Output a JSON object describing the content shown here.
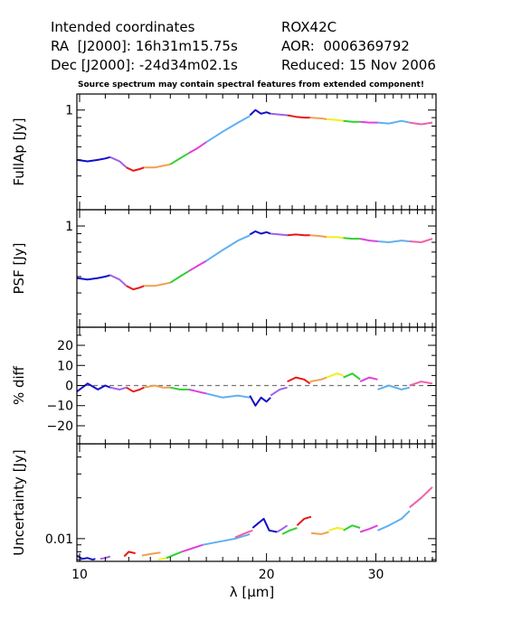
{
  "header": {
    "left_lines": [
      "Intended coordinates",
      "RA  [J2000]: 16h31m15.75s",
      "Dec [J2000]: -24d34m02.1s"
    ],
    "right_lines": [
      "ROX42C",
      "AOR:  0006369792",
      "Reduced: 15 Nov 2006"
    ],
    "note": "Source spectrum may contain spectral features from extended component!"
  },
  "chart_data": [
    {
      "type": "line",
      "ylabel": "FullAp [Jy]",
      "xscale": "log",
      "yscale": "log",
      "xlim": [
        9.9,
        37.5
      ],
      "ylim": [
        0.25,
        1.25
      ],
      "yticks": [
        1
      ],
      "ytick_labels": [
        "1"
      ],
      "segments": [
        {
          "color": "#1010c8",
          "x": [
            9.9,
            10.3,
            10.7,
            11.0,
            11.2
          ],
          "y": [
            0.5,
            0.49,
            0.5,
            0.51,
            0.52
          ]
        },
        {
          "color": "#a060e8",
          "x": [
            11.2,
            11.6,
            11.9
          ],
          "y": [
            0.52,
            0.49,
            0.45
          ]
        },
        {
          "color": "#e81818",
          "x": [
            11.9,
            12.2,
            12.5,
            12.7
          ],
          "y": [
            0.45,
            0.43,
            0.44,
            0.45
          ]
        },
        {
          "color": "#f0a050",
          "x": [
            12.7,
            13.2,
            13.6,
            14.0
          ],
          "y": [
            0.45,
            0.45,
            0.46,
            0.47
          ]
        },
        {
          "color": "#30d030",
          "x": [
            14.0,
            14.5,
            15.0
          ],
          "y": [
            0.47,
            0.51,
            0.55
          ]
        },
        {
          "color": "#e040e0",
          "x": [
            15.0,
            15.5,
            16.0
          ],
          "y": [
            0.55,
            0.59,
            0.64
          ]
        },
        {
          "color": "#60b0f0",
          "x": [
            16.0,
            17.0,
            18.0,
            18.8
          ],
          "y": [
            0.64,
            0.74,
            0.84,
            0.92
          ]
        },
        {
          "color": "#1010c8",
          "x": [
            18.8,
            19.2,
            19.6,
            20.0,
            20.3
          ],
          "y": [
            0.93,
            1.0,
            0.95,
            0.97,
            0.95
          ]
        },
        {
          "color": "#a060e8",
          "x": [
            20.3,
            21.0,
            21.6
          ],
          "y": [
            0.95,
            0.94,
            0.93
          ]
        },
        {
          "color": "#e81818",
          "x": [
            21.6,
            22.3,
            23.0,
            23.5
          ],
          "y": [
            0.93,
            0.91,
            0.9,
            0.9
          ]
        },
        {
          "color": "#f0a050",
          "x": [
            23.5,
            24.5,
            25.0
          ],
          "y": [
            0.9,
            0.89,
            0.88
          ]
        },
        {
          "color": "#f0f020",
          "x": [
            25.0,
            26.0,
            26.6
          ],
          "y": [
            0.88,
            0.87,
            0.86
          ]
        },
        {
          "color": "#30d030",
          "x": [
            26.6,
            27.5,
            28.3
          ],
          "y": [
            0.86,
            0.85,
            0.85
          ]
        },
        {
          "color": "#e040e0",
          "x": [
            28.3,
            29.3,
            30.2
          ],
          "y": [
            0.85,
            0.84,
            0.84
          ]
        },
        {
          "color": "#60b0f0",
          "x": [
            30.2,
            31.5,
            33.0,
            34.0
          ],
          "y": [
            0.84,
            0.83,
            0.86,
            0.84
          ]
        },
        {
          "color": "#f060a8",
          "x": [
            34.0,
            35.5,
            37.0
          ],
          "y": [
            0.84,
            0.82,
            0.84
          ]
        }
      ]
    },
    {
      "type": "line",
      "ylabel": "PSF [Jy]",
      "xscale": "log",
      "yscale": "log",
      "xlim": [
        9.9,
        37.5
      ],
      "ylim": [
        0.25,
        1.25
      ],
      "yticks": [
        1
      ],
      "ytick_labels": [
        "1"
      ],
      "segments": [
        {
          "color": "#1010c8",
          "x": [
            9.9,
            10.3,
            10.7,
            11.0,
            11.2
          ],
          "y": [
            0.49,
            0.48,
            0.49,
            0.5,
            0.51
          ]
        },
        {
          "color": "#a060e8",
          "x": [
            11.2,
            11.6,
            11.9
          ],
          "y": [
            0.51,
            0.48,
            0.44
          ]
        },
        {
          "color": "#e81818",
          "x": [
            11.9,
            12.2,
            12.5,
            12.7
          ],
          "y": [
            0.44,
            0.42,
            0.43,
            0.44
          ]
        },
        {
          "color": "#f0a050",
          "x": [
            12.7,
            13.2,
            13.6,
            14.0
          ],
          "y": [
            0.44,
            0.44,
            0.45,
            0.46
          ]
        },
        {
          "color": "#30d030",
          "x": [
            14.0,
            14.5,
            15.0
          ],
          "y": [
            0.46,
            0.5,
            0.54
          ]
        },
        {
          "color": "#e040e0",
          "x": [
            15.0,
            15.5,
            16.0
          ],
          "y": [
            0.54,
            0.58,
            0.62
          ]
        },
        {
          "color": "#60b0f0",
          "x": [
            16.0,
            17.0,
            18.0,
            18.8
          ],
          "y": [
            0.62,
            0.72,
            0.82,
            0.88
          ]
        },
        {
          "color": "#1010c8",
          "x": [
            18.8,
            19.2,
            19.6,
            20.0,
            20.3
          ],
          "y": [
            0.89,
            0.93,
            0.9,
            0.92,
            0.9
          ]
        },
        {
          "color": "#a060e8",
          "x": [
            20.3,
            21.0,
            21.6
          ],
          "y": [
            0.9,
            0.89,
            0.88
          ]
        },
        {
          "color": "#e81818",
          "x": [
            21.6,
            22.3,
            23.0,
            23.5
          ],
          "y": [
            0.88,
            0.89,
            0.88,
            0.88
          ]
        },
        {
          "color": "#f0a050",
          "x": [
            23.5,
            24.5,
            25.0
          ],
          "y": [
            0.88,
            0.87,
            0.86
          ]
        },
        {
          "color": "#f0f020",
          "x": [
            25.0,
            26.0,
            26.6
          ],
          "y": [
            0.86,
            0.86,
            0.85
          ]
        },
        {
          "color": "#30d030",
          "x": [
            26.6,
            27.5,
            28.3
          ],
          "y": [
            0.85,
            0.84,
            0.84
          ]
        },
        {
          "color": "#e040e0",
          "x": [
            28.3,
            29.3,
            30.2
          ],
          "y": [
            0.84,
            0.82,
            0.81
          ]
        },
        {
          "color": "#60b0f0",
          "x": [
            30.2,
            31.5,
            33.0,
            34.0
          ],
          "y": [
            0.81,
            0.8,
            0.82,
            0.81
          ]
        },
        {
          "color": "#f060a8",
          "x": [
            34.0,
            35.5,
            37.0
          ],
          "y": [
            0.81,
            0.8,
            0.84
          ]
        }
      ]
    },
    {
      "type": "line",
      "ylabel": "% diff",
      "xscale": "log",
      "yscale": "linear",
      "xlim": [
        9.9,
        37.5
      ],
      "ylim": [
        -29,
        29
      ],
      "yticks": [
        -20,
        -10,
        0,
        10,
        20
      ],
      "ytick_labels": [
        "−20",
        "−10",
        "0",
        "10",
        "20"
      ],
      "reference_line": 0,
      "segments": [
        {
          "color": "#1010c8",
          "x": [
            9.9,
            10.3,
            10.7,
            11.0,
            11.2
          ],
          "y": [
            -3,
            1,
            -2,
            0,
            -1
          ]
        },
        {
          "color": "#a060e8",
          "x": [
            11.2,
            11.6,
            11.9
          ],
          "y": [
            -1,
            -2,
            -1
          ]
        },
        {
          "color": "#e81818",
          "x": [
            11.9,
            12.2,
            12.5,
            12.7
          ],
          "y": [
            -1,
            -3,
            -2,
            -1
          ]
        },
        {
          "color": "#f0a050",
          "x": [
            12.7,
            13.2,
            13.6,
            14.0
          ],
          "y": [
            -1,
            0,
            -1,
            -1
          ]
        },
        {
          "color": "#30d030",
          "x": [
            14.0,
            14.5,
            15.0
          ],
          "y": [
            -1,
            -2,
            -2
          ]
        },
        {
          "color": "#e040e0",
          "x": [
            15.0,
            15.5,
            16.0
          ],
          "y": [
            -2,
            -3,
            -4
          ]
        },
        {
          "color": "#60b0f0",
          "x": [
            16.0,
            17.0,
            18.0,
            18.8
          ],
          "y": [
            -4,
            -6,
            -5,
            -6
          ]
        },
        {
          "color": "#1010c8",
          "x": [
            18.8,
            19.2,
            19.6,
            20.0,
            20.3
          ],
          "y": [
            -5,
            -10,
            -6,
            -8,
            -6
          ]
        },
        {
          "color": "#a060e8",
          "x": [
            20.3,
            21.0,
            21.6
          ],
          "y": [
            -5,
            -2,
            -1
          ]
        },
        {
          "color": "#e81818",
          "x": [
            21.6,
            22.3,
            23.0,
            23.5
          ],
          "y": [
            2,
            4,
            3,
            1
          ]
        },
        {
          "color": "#f0a050",
          "x": [
            23.5,
            24.5,
            25.0
          ],
          "y": [
            2,
            3,
            4
          ]
        },
        {
          "color": "#f0f020",
          "x": [
            25.0,
            26.0,
            26.6
          ],
          "y": [
            4,
            6,
            5
          ]
        },
        {
          "color": "#30d030",
          "x": [
            26.6,
            27.5,
            28.3
          ],
          "y": [
            4,
            6,
            3
          ]
        },
        {
          "color": "#e040e0",
          "x": [
            28.3,
            29.3,
            30.2
          ],
          "y": [
            2,
            4,
            3
          ]
        },
        {
          "color": "#60b0f0",
          "x": [
            30.2,
            31.5,
            33.0,
            34.0
          ],
          "y": [
            -2,
            0,
            -2,
            -1
          ]
        },
        {
          "color": "#f060a8",
          "x": [
            34.0,
            35.5,
            37.0
          ],
          "y": [
            0,
            2,
            1
          ]
        }
      ]
    },
    {
      "type": "line",
      "ylabel": "Uncertainty [Jy]",
      "xlabel": "λ [μm]",
      "xscale": "log",
      "yscale": "log",
      "xlim": [
        9.9,
        37.5
      ],
      "ylim": [
        0.0068,
        0.05
      ],
      "yticks": [
        0.01
      ],
      "ytick_labels": [
        "0.01"
      ],
      "xticks": [
        10,
        20,
        30
      ],
      "xtick_labels": [
        "10",
        "20",
        "30"
      ],
      "segments": [
        {
          "color": "#1010c8",
          "x": [
            9.9,
            10.1,
            10.3,
            10.5,
            10.6
          ],
          "y": [
            0.0075,
            0.0071,
            0.0072,
            0.007,
            0.0071
          ]
        },
        {
          "color": "#a060e8",
          "x": [
            10.8,
            11.0,
            11.2
          ],
          "y": [
            0.0071,
            0.0072,
            0.0074
          ]
        },
        {
          "color": "#e81818",
          "x": [
            11.8,
            12.0,
            12.3
          ],
          "y": [
            0.0074,
            0.008,
            0.0078
          ]
        },
        {
          "color": "#f0a050",
          "x": [
            12.6,
            13.0,
            13.5
          ],
          "y": [
            0.0075,
            0.0077,
            0.0079
          ]
        },
        {
          "color": "#f0f020",
          "x": [
            13.4,
            13.8
          ],
          "y": [
            0.007,
            0.0072
          ]
        },
        {
          "color": "#30d030",
          "x": [
            13.8,
            14.2,
            14.6
          ],
          "y": [
            0.0072,
            0.0076,
            0.008
          ]
        },
        {
          "color": "#e040e0",
          "x": [
            14.6,
            15.2,
            15.8
          ],
          "y": [
            0.008,
            0.0085,
            0.009
          ]
        },
        {
          "color": "#60b0f0",
          "x": [
            15.8,
            16.8,
            17.8,
            18.8
          ],
          "y": [
            0.009,
            0.0095,
            0.01,
            0.0108
          ]
        },
        {
          "color": "#f060a8",
          "x": [
            17.8,
            18.5,
            19.0
          ],
          "y": [
            0.0102,
            0.011,
            0.0115
          ]
        },
        {
          "color": "#1010c8",
          "x": [
            19.0,
            19.4,
            19.8,
            20.2,
            20.8
          ],
          "y": [
            0.012,
            0.013,
            0.014,
            0.0115,
            0.0112
          ]
        },
        {
          "color": "#a060e8",
          "x": [
            20.8,
            21.2,
            21.6
          ],
          "y": [
            0.0112,
            0.0118,
            0.0125
          ]
        },
        {
          "color": "#30d030",
          "x": [
            21.2,
            21.8,
            22.4
          ],
          "y": [
            0.0108,
            0.0115,
            0.012
          ]
        },
        {
          "color": "#e81818",
          "x": [
            22.4,
            23.0,
            23.6
          ],
          "y": [
            0.0125,
            0.014,
            0.0145
          ]
        },
        {
          "color": "#f0a050",
          "x": [
            23.6,
            24.5,
            25.2
          ],
          "y": [
            0.011,
            0.0108,
            0.0112
          ]
        },
        {
          "color": "#f0f020",
          "x": [
            25.2,
            26.0,
            26.6
          ],
          "y": [
            0.0115,
            0.012,
            0.0118
          ]
        },
        {
          "color": "#30d030",
          "x": [
            26.6,
            27.5,
            28.3
          ],
          "y": [
            0.0115,
            0.0125,
            0.012
          ]
        },
        {
          "color": "#e040e0",
          "x": [
            28.3,
            29.3,
            30.2
          ],
          "y": [
            0.0112,
            0.0118,
            0.0125
          ]
        },
        {
          "color": "#60b0f0",
          "x": [
            30.2,
            31.5,
            33.0,
            34.0
          ],
          "y": [
            0.0115,
            0.0125,
            0.014,
            0.016
          ]
        },
        {
          "color": "#f060a8",
          "x": [
            34.0,
            35.5,
            37.0
          ],
          "y": [
            0.017,
            0.02,
            0.024
          ]
        }
      ]
    }
  ]
}
